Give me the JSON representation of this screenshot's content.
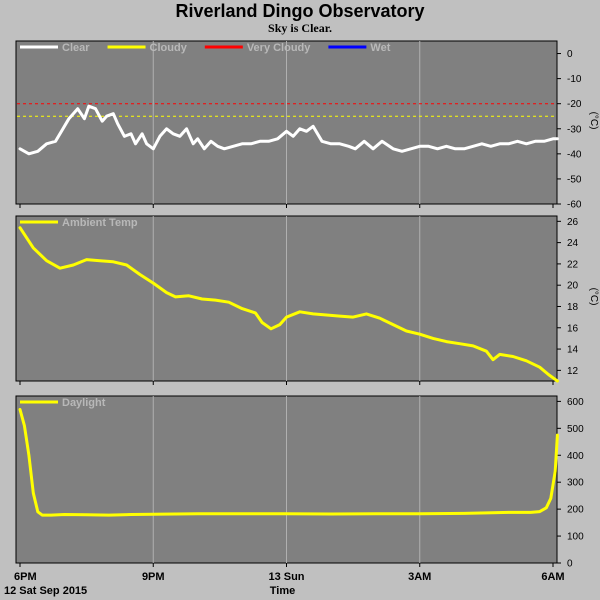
{
  "title": "Riverland Dingo Observatory",
  "subtitle": "Sky is Clear.",
  "colors": {
    "page_bg": "#c0c0c0",
    "plot_bg": "#808080",
    "grid": "#b0b0b0",
    "clear": "#ffffff",
    "cloudy": "#ffff00",
    "very_cloudy": "#ff0000",
    "wet": "#0000ff",
    "temp": "#ffff00",
    "daylight": "#ffff00"
  },
  "x_axis": {
    "xlabel": "Time",
    "date_label": "12 Sat Sep 2015",
    "tick_labels": [
      "6PM",
      "9PM",
      "13 Sun",
      "3AM",
      "6AM"
    ],
    "tick_hours": [
      0,
      3,
      6,
      9,
      12
    ],
    "xlim": [
      0,
      12
    ]
  },
  "chart_data": [
    {
      "type": "line",
      "name": "sky",
      "ylabel": "(°C)",
      "ylim": [
        -60,
        5
      ],
      "yticks": [
        0,
        -10,
        -20,
        -30,
        -40,
        -50,
        -60
      ],
      "legend": [
        "Clear",
        "Cloudy",
        "Very Cloudy",
        "Wet"
      ],
      "legend_colors": [
        "#ffffff",
        "#ffff00",
        "#ff0000",
        "#0000ff"
      ],
      "thresholds": [
        {
          "name": "Very Cloudy",
          "value": -20,
          "color": "#ff0000"
        },
        {
          "name": "Cloudy",
          "value": -25,
          "color": "#ffff00"
        }
      ],
      "series": [
        {
          "name": "Clear",
          "x": [
            0,
            0.2,
            0.4,
            0.6,
            0.8,
            1.0,
            1.1,
            1.3,
            1.45,
            1.55,
            1.7,
            1.85,
            1.95,
            2.1,
            2.2,
            2.35,
            2.5,
            2.6,
            2.75,
            2.85,
            3.0,
            3.15,
            3.3,
            3.45,
            3.6,
            3.75,
            3.9,
            4.0,
            4.15,
            4.3,
            4.45,
            4.6,
            4.8,
            5.0,
            5.2,
            5.4,
            5.6,
            5.8,
            6.0,
            6.15,
            6.3,
            6.45,
            6.6,
            6.8,
            7.0,
            7.2,
            7.4,
            7.55,
            7.75,
            7.95,
            8.15,
            8.4,
            8.6,
            8.8,
            9.0,
            9.2,
            9.4,
            9.6,
            9.8,
            10.0,
            10.2,
            10.4,
            10.6,
            10.8,
            11.0,
            11.2,
            11.4,
            11.6,
            11.8,
            12.0,
            12.1
          ],
          "values": [
            -38,
            -40,
            -39,
            -36,
            -35,
            -29,
            -26,
            -22,
            -26,
            -21,
            -22,
            -27,
            -25,
            -24,
            -28,
            -33,
            -32,
            -36,
            -32,
            -36,
            -38,
            -33,
            -30,
            -32,
            -33,
            -30,
            -36,
            -34,
            -38,
            -35,
            -37,
            -38,
            -37,
            -36,
            -36,
            -35,
            -35,
            -34,
            -31,
            -33,
            -30,
            -31,
            -29,
            -35,
            -36,
            -36,
            -37,
            -38,
            -35,
            -38,
            -35,
            -38,
            -39,
            -38,
            -37,
            -37,
            -38,
            -37,
            -38,
            -38,
            -37,
            -36,
            -37,
            -36,
            -36,
            -35,
            -36,
            -35,
            -35,
            -34,
            -34
          ]
        }
      ]
    },
    {
      "type": "line",
      "name": "ambient",
      "ylabel": "(°C)",
      "ylim": [
        11,
        26.5
      ],
      "yticks": [
        12,
        14,
        16,
        18,
        20,
        22,
        24,
        26
      ],
      "legend": [
        "Ambient Temp"
      ],
      "legend_colors": [
        "#ffff00"
      ],
      "series": [
        {
          "name": "Ambient Temp",
          "x": [
            0,
            0.3,
            0.6,
            0.9,
            1.2,
            1.5,
            1.8,
            2.1,
            2.4,
            2.7,
            3.0,
            3.3,
            3.5,
            3.8,
            4.1,
            4.4,
            4.7,
            5.0,
            5.3,
            5.45,
            5.65,
            5.85,
            6.0,
            6.3,
            6.6,
            6.9,
            7.2,
            7.5,
            7.8,
            8.1,
            8.4,
            8.7,
            9.0,
            9.3,
            9.6,
            9.9,
            10.2,
            10.5,
            10.65,
            10.8,
            11.1,
            11.4,
            11.7,
            11.9,
            12.1
          ],
          "values": [
            25.4,
            23.5,
            22.3,
            21.6,
            21.9,
            22.4,
            22.3,
            22.2,
            21.9,
            21.0,
            20.2,
            19.3,
            18.9,
            19.0,
            18.7,
            18.6,
            18.4,
            17.8,
            17.4,
            16.5,
            15.9,
            16.3,
            17.0,
            17.5,
            17.3,
            17.2,
            17.1,
            17.0,
            17.3,
            16.9,
            16.3,
            15.7,
            15.4,
            15.0,
            14.7,
            14.5,
            14.3,
            13.8,
            13.0,
            13.5,
            13.3,
            12.9,
            12.3,
            11.6,
            11.0
          ]
        }
      ]
    },
    {
      "type": "line",
      "name": "daylight",
      "ylabel": "",
      "ylim": [
        0,
        620
      ],
      "yticks": [
        0,
        100,
        200,
        300,
        400,
        500,
        600
      ],
      "legend": [
        "Daylight"
      ],
      "legend_colors": [
        "#ffff00"
      ],
      "series": [
        {
          "name": "Daylight",
          "x": [
            0,
            0.1,
            0.2,
            0.3,
            0.4,
            0.5,
            0.7,
            1.0,
            1.5,
            2.0,
            2.5,
            3.0,
            3.5,
            4.0,
            5.0,
            6.0,
            7.0,
            8.0,
            9.0,
            10.0,
            10.5,
            11.0,
            11.3,
            11.5,
            11.7,
            11.85,
            11.95,
            12.05,
            12.1
          ],
          "values": [
            570,
            510,
            400,
            260,
            190,
            178,
            178,
            180,
            179,
            178,
            180,
            181,
            182,
            183,
            183,
            183,
            182,
            183,
            183,
            184,
            186,
            188,
            188,
            188,
            191,
            205,
            240,
            340,
            475
          ]
        }
      ]
    }
  ]
}
